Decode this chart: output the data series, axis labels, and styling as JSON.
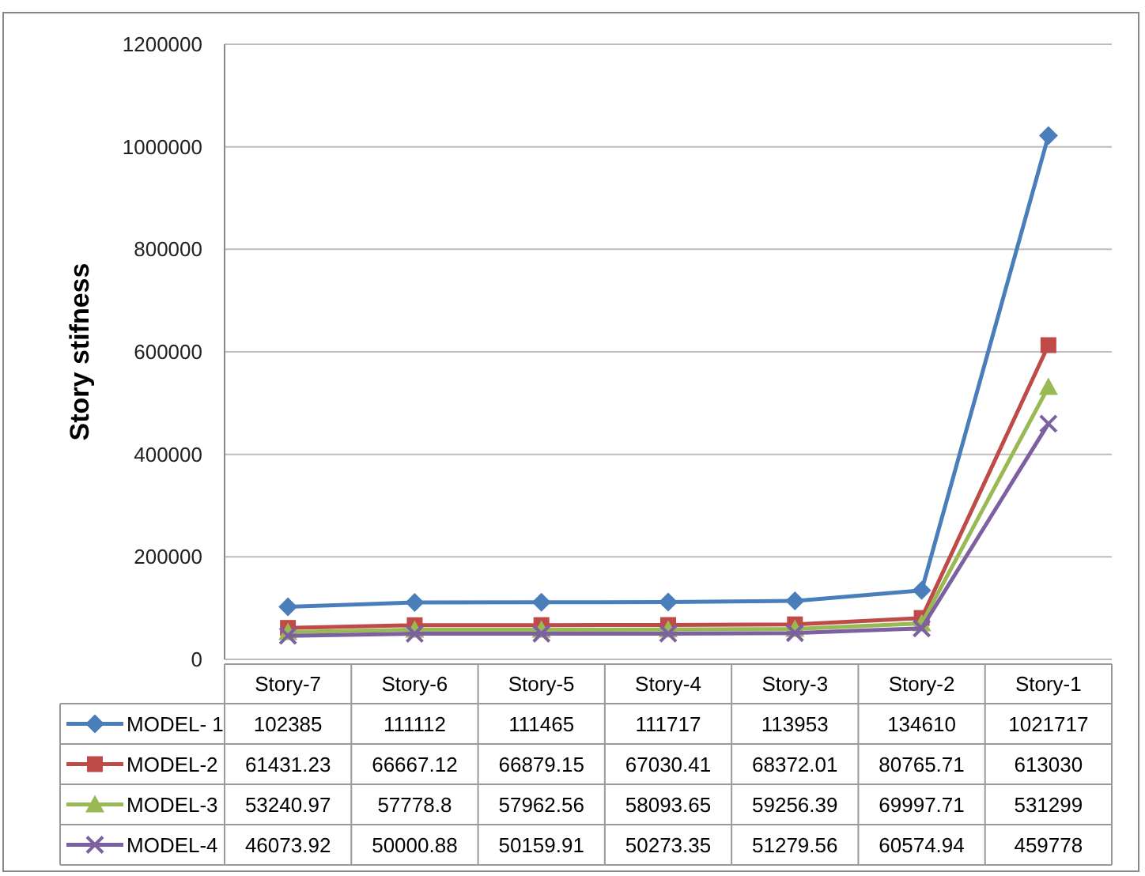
{
  "chart_data": {
    "type": "line",
    "ylabel": "Story stifness",
    "categories": [
      "Story-7",
      "Story-6",
      "Story-5",
      "Story-4",
      "Story-3",
      "Story-2",
      "Story-1"
    ],
    "series": [
      {
        "name": "MODEL- 1",
        "color": "#4a7ebb",
        "marker": "diamond",
        "values": [
          102385,
          111112,
          111465,
          111717,
          113953,
          134610,
          1021717
        ]
      },
      {
        "name": "MODEL-2",
        "color": "#be4b48",
        "marker": "square",
        "values": [
          61431.23,
          66667.12,
          66879.15,
          67030.41,
          68372.01,
          80765.71,
          613030
        ]
      },
      {
        "name": "MODEL-3",
        "color": "#98b954",
        "marker": "triangle",
        "values": [
          53240.97,
          57778.8,
          57962.56,
          58093.65,
          59256.39,
          69997.71,
          531299
        ]
      },
      {
        "name": "MODEL-4",
        "color": "#7d60a0",
        "marker": "cross",
        "values": [
          46073.92,
          50000.88,
          50159.91,
          50273.35,
          51279.56,
          60574.94,
          459778
        ]
      }
    ],
    "ylim": [
      0,
      1200000
    ],
    "yticks": [
      0,
      200000,
      400000,
      600000,
      800000,
      1000000,
      1200000
    ],
    "grid": "y",
    "data_labels": true,
    "legend": "bottom",
    "line_style": "solid"
  }
}
